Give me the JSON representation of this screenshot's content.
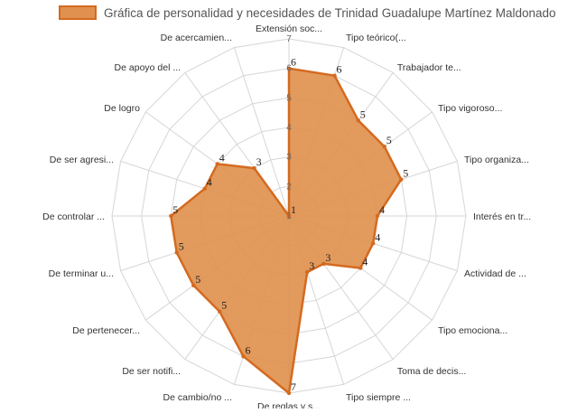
{
  "chart_data": {
    "type": "radar",
    "title": "",
    "legend": {
      "position": "top",
      "entries": [
        "Gráfica de personalidad y necesidades de Trinidad Guadalupe Martínez Maldonado"
      ]
    },
    "categories": [
      "Extensión soc...",
      "Tipo teórico(...",
      "Trabajador te...",
      "Tipo vigoroso...",
      "Tipo organiza...",
      "Interés en tr...",
      "Actividad de ...",
      "Tipo emociona...",
      "Toma de decis...",
      "Tipo siempre ...",
      "De reglas y s...",
      "De cambio/no ...",
      "De ser notifi...",
      "De pertenecer...",
      "De terminar u...",
      "De controlar ...",
      "De ser agresi...",
      "De logro",
      "De apoyo del ...",
      "De acercamien..."
    ],
    "series": [
      {
        "name": "Gráfica de personalidad y necesidades de Trinidad Guadalupe Martínez Maldonado",
        "values": [
          6,
          6,
          5,
          5,
          5,
          4,
          4,
          4,
          3,
          3,
          7,
          6,
          5,
          5,
          5,
          5,
          4,
          4,
          3,
          1
        ],
        "color": "#d46a1f",
        "fill": "#e0914f"
      }
    ],
    "axis": {
      "min": 1,
      "max": 7,
      "ticks": [
        "1",
        "2",
        "3",
        "4",
        "5",
        "6",
        "7"
      ]
    },
    "grid": true
  }
}
